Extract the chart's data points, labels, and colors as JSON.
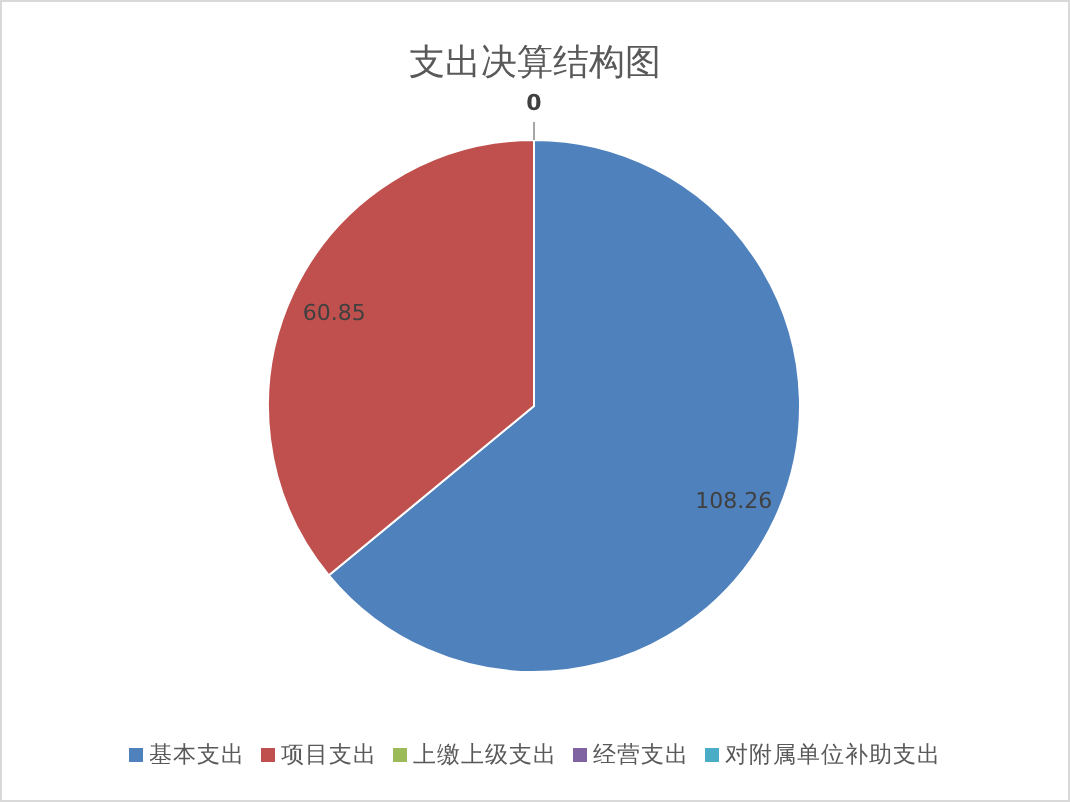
{
  "chart_data": {
    "type": "pie",
    "title": "支出决算结构图",
    "categories": [
      "基本支出",
      "项目支出",
      "上缴上级支出",
      "经营支出",
      "对附属单位补助支出"
    ],
    "values": [
      108.26,
      60.85,
      0,
      0,
      0
    ],
    "colors": [
      "#4f81bd",
      "#c0504d",
      "#9bbb59",
      "#8064a2",
      "#4bacc6"
    ],
    "value_labels": [
      "108.26",
      "60.85",
      "0",
      null,
      null
    ],
    "legend": "bottom"
  }
}
